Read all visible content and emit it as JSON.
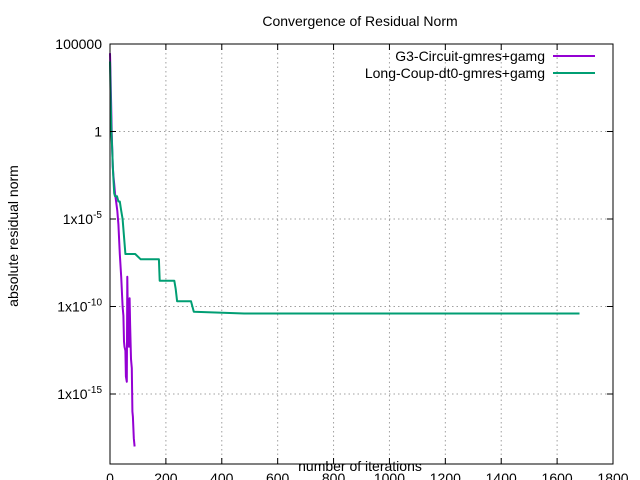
{
  "chart_data": {
    "type": "line",
    "title": "Convergence of Residual Norm",
    "xlabel": "number of iterations",
    "ylabel": "absolute residual norm",
    "xlim": [
      0,
      1800
    ],
    "ylim": [
      1e-19,
      100000
    ],
    "yscale": "log",
    "grid": true,
    "legend_position": "top-right",
    "x_ticks": [
      {
        "value": 0,
        "label": "0"
      },
      {
        "value": 200,
        "label": "200"
      },
      {
        "value": 400,
        "label": "400"
      },
      {
        "value": 600,
        "label": "600"
      },
      {
        "value": 800,
        "label": "800"
      },
      {
        "value": 1000,
        "label": "1000"
      },
      {
        "value": 1200,
        "label": "1200"
      },
      {
        "value": 1400,
        "label": "1400"
      },
      {
        "value": 1600,
        "label": "1600"
      },
      {
        "value": 1800,
        "label": "1800"
      }
    ],
    "y_ticks": [
      {
        "value": 100000,
        "label": "100000"
      },
      {
        "value": 1,
        "label": "1"
      },
      {
        "value": 1e-05,
        "label": "1x10-5"
      },
      {
        "value": 1e-10,
        "label": "1x10-10"
      },
      {
        "value": 1e-15,
        "label": "1x10-15"
      }
    ],
    "series": [
      {
        "name": "G3-Circuit-gmres+gamg",
        "color": "#9400d3",
        "x": [
          0,
          2,
          4,
          6,
          8,
          10,
          12,
          15,
          18,
          22,
          26,
          30,
          35,
          40,
          45,
          48,
          50,
          52,
          55,
          57,
          60,
          62,
          65,
          68,
          70,
          72,
          75,
          78,
          80,
          82,
          85,
          88
        ],
        "y": [
          30000,
          1000,
          50,
          1,
          0.1,
          0.01,
          0.003,
          0.001,
          0.0003,
          0.0001,
          3e-05,
          5e-06,
          1e-07,
          5e-09,
          1e-10,
          3e-11,
          1e-12,
          5e-13,
          3e-13,
          1e-14,
          5e-15,
          5e-09,
          1e-12,
          5e-13,
          3e-10,
          1e-11,
          1e-13,
          3e-14,
          1e-16,
          5e-17,
          3e-18,
          1e-18
        ]
      },
      {
        "name": "Long-Coup-dt0-gmres+gamg",
        "color": "#009e73",
        "x": [
          0,
          2,
          5,
          8,
          10,
          12,
          15,
          18,
          20,
          25,
          30,
          35,
          40,
          45,
          50,
          55,
          60,
          90,
          110,
          175,
          178,
          230,
          235,
          240,
          290,
          300,
          480,
          1680
        ],
        "y": [
          10000,
          100,
          1,
          0.1,
          0.01,
          0.002,
          0.0003,
          0.0002,
          0.0002,
          0.0002,
          0.0001,
          0.0001,
          3e-05,
          1e-05,
          1e-06,
          1e-07,
          1e-07,
          1e-07,
          5e-08,
          5e-08,
          3e-09,
          3e-09,
          1e-09,
          2e-10,
          2e-10,
          5e-11,
          4e-11,
          4e-11
        ]
      }
    ]
  }
}
